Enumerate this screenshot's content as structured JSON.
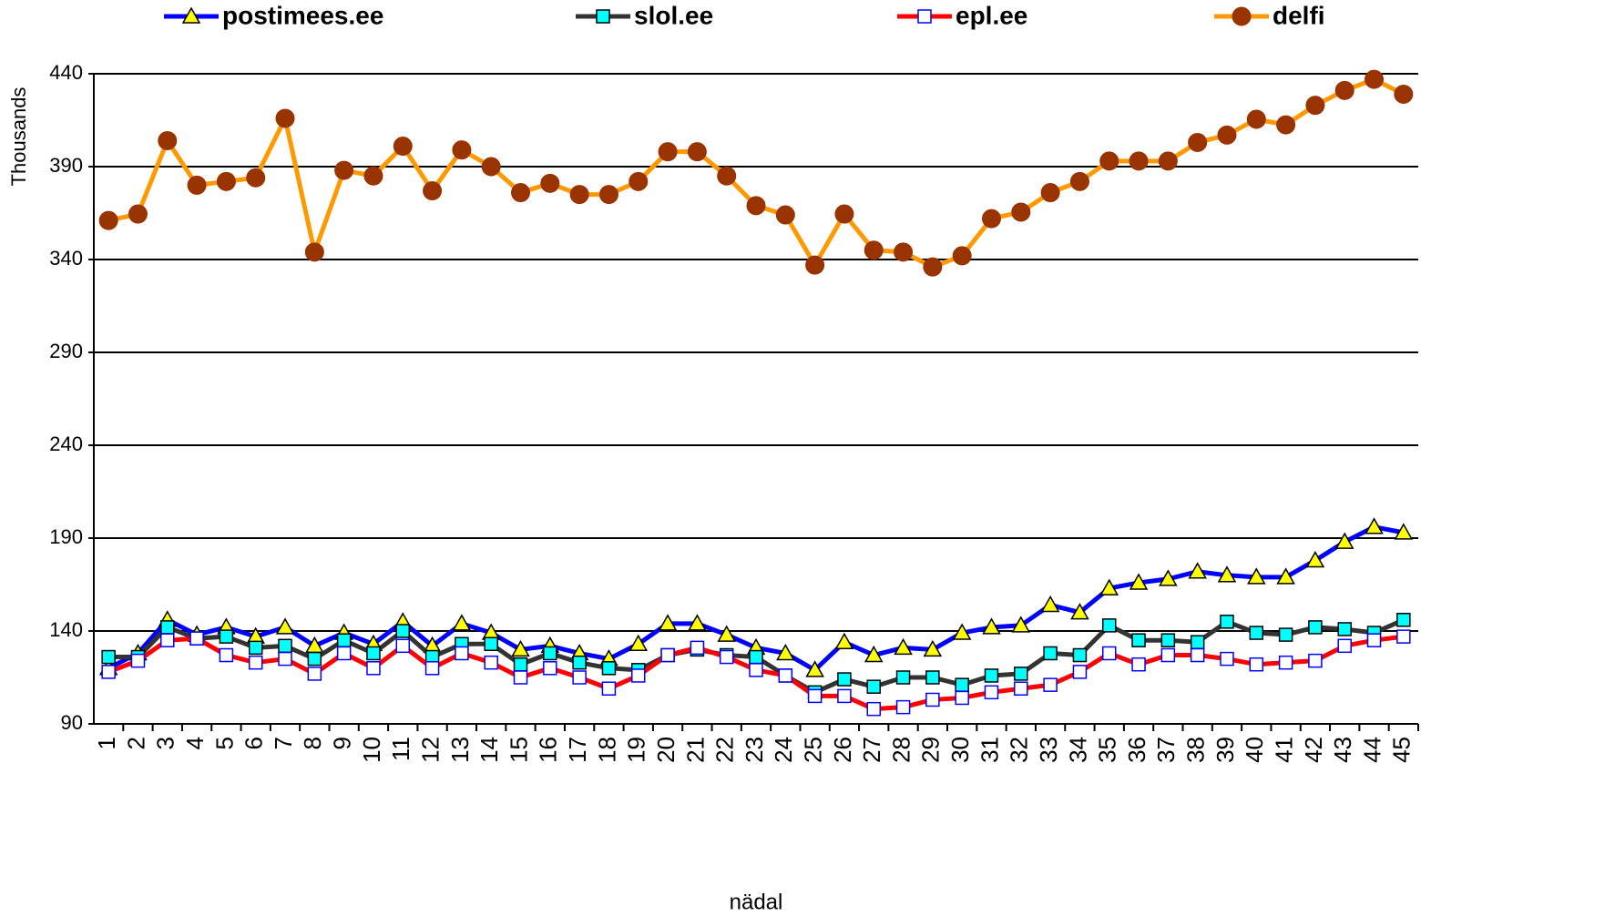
{
  "chart_data": {
    "type": "line",
    "y_label": "Thousands",
    "x_label": "nädal",
    "categories": [
      "1",
      "2",
      "3",
      "4",
      "5",
      "6",
      "7",
      "8",
      "9",
      "10",
      "11",
      "12",
      "13",
      "14",
      "15",
      "16",
      "17",
      "18",
      "19",
      "20",
      "21",
      "22",
      "23",
      "24",
      "25",
      "26",
      "27",
      "28",
      "29",
      "30",
      "31",
      "32",
      "33",
      "34",
      "35",
      "36",
      "37",
      "38",
      "39",
      "40",
      "41",
      "42",
      "43",
      "44",
      "45"
    ],
    "ylim": [
      90,
      440
    ],
    "yticks": [
      90,
      140,
      190,
      240,
      290,
      340,
      390,
      440
    ],
    "grid": true,
    "legend": "top",
    "series": [
      {
        "name": "postimees.ee",
        "color": "#0000ff",
        "marker": "triangle",
        "marker_fill": "#ffff00",
        "values": [
          120,
          128,
          146,
          138,
          142,
          137,
          142,
          132,
          139,
          133,
          145,
          132,
          144,
          139,
          130,
          132,
          128,
          125,
          133,
          144,
          144,
          138,
          131,
          128,
          119,
          134,
          127,
          131,
          130,
          139,
          142,
          143,
          154,
          150,
          163,
          166,
          168,
          172,
          170,
          169,
          169,
          178,
          188,
          196,
          193
        ]
      },
      {
        "name": "slol.ee",
        "color": "#333333",
        "marker": "square",
        "marker_fill": "#00ffff",
        "values": [
          126,
          126,
          142,
          136,
          137,
          131,
          132,
          125,
          135,
          128,
          140,
          126,
          133,
          133,
          122,
          128,
          123,
          120,
          119,
          127,
          130,
          127,
          126,
          116,
          107,
          114,
          110,
          115,
          115,
          111,
          116,
          117,
          128,
          127,
          143,
          135,
          135,
          134,
          145,
          139,
          138,
          142,
          141,
          139,
          146
        ]
      },
      {
        "name": "epl.ee",
        "color": "#ff0000",
        "marker": "square",
        "marker_fill": "#ffffff",
        "marker_stroke": "#0000ff",
        "values": [
          118,
          124,
          135,
          136,
          127,
          123,
          125,
          117,
          128,
          120,
          132,
          120,
          128,
          123,
          115,
          120,
          115,
          109,
          116,
          127,
          131,
          126,
          119,
          116,
          105,
          105,
          98,
          99,
          103,
          104,
          107,
          109,
          111,
          118,
          128,
          122,
          127,
          127,
          125,
          122,
          123,
          124,
          132,
          135,
          137
        ]
      },
      {
        "name": "delfi",
        "color": "#ff9900",
        "marker": "circle",
        "marker_fill": "#993300",
        "values": [
          361,
          364.5,
          404,
          380,
          382,
          384,
          416,
          344,
          388,
          385,
          401,
          377,
          399,
          390,
          376,
          381,
          375,
          375,
          382,
          398,
          398,
          385,
          369,
          364,
          337,
          364.5,
          345,
          344,
          336,
          342,
          362,
          365.5,
          376,
          382,
          393,
          393,
          393,
          403,
          407,
          415.5,
          412.5,
          423,
          431,
          437,
          429
        ]
      }
    ]
  }
}
